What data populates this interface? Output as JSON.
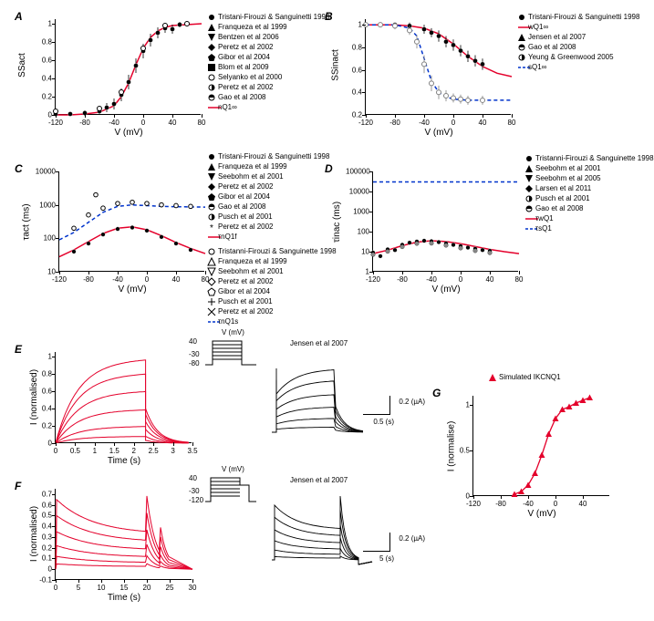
{
  "colors": {
    "red": "#e4002b",
    "blue": "#0033cc",
    "black": "#000000",
    "gray": "#808080",
    "bg": "#ffffff"
  },
  "panelA": {
    "label": "A",
    "type": "scatter+line",
    "xlabel": "V (mV)",
    "ylabel": "SSact",
    "xlim": [
      -120,
      80
    ],
    "ylim": [
      0,
      1.05
    ],
    "xticks": [
      -120,
      -80,
      -40,
      0,
      40,
      80
    ],
    "yticks": [
      0,
      0.2,
      0.4,
      0.6,
      0.8,
      1
    ],
    "legend": [
      {
        "label": "Tristani-Firouzi & Sanguinetti 1998",
        "marker": "circle-filled",
        "color": "#000"
      },
      {
        "label": "Franqueza et al 1999",
        "marker": "triangle-up-filled",
        "color": "#000"
      },
      {
        "label": "Bentzen et al 2006",
        "marker": "triangle-down-filled",
        "color": "#000"
      },
      {
        "label": "Peretz et al 2002",
        "marker": "diamond-filled",
        "color": "#000"
      },
      {
        "label": "Gibor et al 2004",
        "marker": "pentagon-filled",
        "color": "#000"
      },
      {
        "label": "Blom et al 2009",
        "marker": "square-filled",
        "color": "#000"
      },
      {
        "label": "Selyanko et al 2000",
        "marker": "circle-open",
        "color": "#000"
      },
      {
        "label": "Peretz et al 2002",
        "marker": "circle-half",
        "color": "#000"
      },
      {
        "label": "Gao et al 2008",
        "marker": "circle-half-v",
        "color": "#000"
      },
      {
        "label": "nQ1∞",
        "marker": "line",
        "color": "#e4002b"
      }
    ],
    "curve_x": [
      -120,
      -100,
      -80,
      -60,
      -40,
      -30,
      -20,
      -10,
      0,
      10,
      20,
      30,
      40,
      60,
      80
    ],
    "curve_y": [
      0,
      0,
      0.01,
      0.03,
      0.1,
      0.2,
      0.35,
      0.55,
      0.73,
      0.85,
      0.92,
      0.96,
      0.98,
      0.99,
      1.0
    ],
    "points": [
      {
        "x": -120,
        "y": 0.01,
        "err": 0.02
      },
      {
        "x": -100,
        "y": 0.01,
        "err": 0.02
      },
      {
        "x": -80,
        "y": 0.02,
        "err": 0.03
      },
      {
        "x": -60,
        "y": 0.04,
        "err": 0.04
      },
      {
        "x": -50,
        "y": 0.08,
        "err": 0.05
      },
      {
        "x": -40,
        "y": 0.12,
        "err": 0.06
      },
      {
        "x": -30,
        "y": 0.22,
        "err": 0.07
      },
      {
        "x": -20,
        "y": 0.36,
        "err": 0.08
      },
      {
        "x": -10,
        "y": 0.54,
        "err": 0.08
      },
      {
        "x": 0,
        "y": 0.7,
        "err": 0.08
      },
      {
        "x": 10,
        "y": 0.82,
        "err": 0.07
      },
      {
        "x": 20,
        "y": 0.9,
        "err": 0.06
      },
      {
        "x": 30,
        "y": 0.95,
        "err": 0.05
      },
      {
        "x": 40,
        "y": 0.94,
        "err": 0.05
      },
      {
        "x": 50,
        "y": 0.99,
        "err": 0.03
      },
      {
        "x": 60,
        "y": 1.0,
        "err": 0.02
      }
    ]
  },
  "panelB": {
    "label": "B",
    "type": "scatter+line",
    "xlabel": "V (mV)",
    "ylabel": "SSinact",
    "xlim": [
      -120,
      80
    ],
    "ylim": [
      0.2,
      1.05
    ],
    "xticks": [
      -120,
      -80,
      -40,
      0,
      40,
      80
    ],
    "yticks": [
      0.2,
      0.4,
      0.6,
      0.8,
      1
    ],
    "legend": [
      {
        "label": "Tristani-Firouzi & Sanguinetti 1998",
        "marker": "circle-filled",
        "color": "#000"
      },
      {
        "label": "wQ1∞",
        "marker": "line",
        "color": "#e4002b"
      },
      {
        "label": "Jensen et al 2007",
        "marker": "triangle-up-filled",
        "color": "#000"
      },
      {
        "label": "Gao et al 2008",
        "marker": "circle-half-v",
        "color": "#000"
      },
      {
        "label": "Yeung & Greenwood 2005",
        "marker": "circle-half",
        "color": "#000"
      },
      {
        "label": "sQ1∞",
        "marker": "line-dash",
        "color": "#0033cc"
      }
    ],
    "red_curve": {
      "x": [
        -120,
        -100,
        -80,
        -60,
        -40,
        -20,
        0,
        20,
        40,
        60,
        80
      ],
      "y": [
        1,
        1,
        1,
        0.99,
        0.97,
        0.92,
        0.83,
        0.72,
        0.63,
        0.57,
        0.54
      ]
    },
    "blue_curve": {
      "x": [
        -120,
        -100,
        -80,
        -60,
        -50,
        -40,
        -30,
        -20,
        -10,
        0,
        20,
        40,
        60,
        80
      ],
      "y": [
        1,
        1,
        1,
        0.97,
        0.9,
        0.7,
        0.5,
        0.4,
        0.36,
        0.34,
        0.33,
        0.33,
        0.33,
        0.33
      ]
    },
    "black_points": [
      {
        "x": -120,
        "y": 1.0,
        "err": 0.02
      },
      {
        "x": -100,
        "y": 1.0,
        "err": 0.02
      },
      {
        "x": -80,
        "y": 1.0,
        "err": 0.02
      },
      {
        "x": -60,
        "y": 0.99,
        "err": 0.03
      },
      {
        "x": -40,
        "y": 0.96,
        "err": 0.04
      },
      {
        "x": -30,
        "y": 0.93,
        "err": 0.04
      },
      {
        "x": -20,
        "y": 0.9,
        "err": 0.05
      },
      {
        "x": -10,
        "y": 0.85,
        "err": 0.05
      },
      {
        "x": 0,
        "y": 0.82,
        "err": 0.05
      },
      {
        "x": 10,
        "y": 0.77,
        "err": 0.05
      },
      {
        "x": 20,
        "y": 0.72,
        "err": 0.05
      },
      {
        "x": 30,
        "y": 0.68,
        "err": 0.05
      },
      {
        "x": 40,
        "y": 0.65,
        "err": 0.05
      }
    ],
    "blue_points": [
      {
        "x": -120,
        "y": 1.0,
        "err": 0.02
      },
      {
        "x": -100,
        "y": 1.0,
        "err": 0.02
      },
      {
        "x": -80,
        "y": 0.99,
        "err": 0.03
      },
      {
        "x": -60,
        "y": 0.95,
        "err": 0.04
      },
      {
        "x": -50,
        "y": 0.85,
        "err": 0.06
      },
      {
        "x": -40,
        "y": 0.65,
        "err": 0.08
      },
      {
        "x": -30,
        "y": 0.48,
        "err": 0.07
      },
      {
        "x": -20,
        "y": 0.4,
        "err": 0.06
      },
      {
        "x": -10,
        "y": 0.37,
        "err": 0.05
      },
      {
        "x": 0,
        "y": 0.35,
        "err": 0.04
      },
      {
        "x": 10,
        "y": 0.34,
        "err": 0.04
      },
      {
        "x": 20,
        "y": 0.33,
        "err": 0.04
      },
      {
        "x": 40,
        "y": 0.33,
        "err": 0.04
      }
    ]
  },
  "panelC": {
    "label": "C",
    "type": "scatter+line",
    "xlabel": "V (mV)",
    "ylabel": "τact (ms)",
    "xlim": [
      -120,
      80
    ],
    "ylim": [
      10,
      10000
    ],
    "yscale": "log",
    "xticks": [
      -120,
      -80,
      -40,
      0,
      40,
      80
    ],
    "yticks": [
      10,
      100,
      1000,
      10000
    ],
    "legend_top": [
      {
        "label": "Tristani-Firouzi & Sanguinetti 1998",
        "marker": "circle-filled",
        "color": "#000"
      },
      {
        "label": "Franqueza et al 1999",
        "marker": "triangle-up-filled",
        "color": "#000"
      },
      {
        "label": "Seebohm et al 2001",
        "marker": "triangle-down-filled",
        "color": "#000"
      },
      {
        "label": "Peretz et al 2002",
        "marker": "diamond-filled",
        "color": "#000"
      },
      {
        "label": "Gibor et al 2004",
        "marker": "pentagon-filled",
        "color": "#000"
      },
      {
        "label": "Gao et al 2008",
        "marker": "circle-half-v",
        "color": "#000"
      },
      {
        "label": "Pusch et al 2001",
        "marker": "circle-half",
        "color": "#000"
      },
      {
        "label": "Peretz et al 2002",
        "marker": "star",
        "color": "#000"
      },
      {
        "label": "τnQ1f",
        "marker": "line",
        "color": "#e4002b"
      }
    ],
    "legend_bottom": [
      {
        "label": "Tristanni-Firouzi & Sanguinette 1998",
        "marker": "circle-open",
        "color": "#000"
      },
      {
        "label": "Franqueza et al 1999",
        "marker": "triangle-up-open",
        "color": "#000"
      },
      {
        "label": "Seebohm et al 2001",
        "marker": "triangle-down-open",
        "color": "#000"
      },
      {
        "label": "Peretz et al 2002",
        "marker": "diamond-open",
        "color": "#000"
      },
      {
        "label": "Gibor et al 2004",
        "marker": "pentagon-open",
        "color": "#000"
      },
      {
        "label": "Pusch et al 2001",
        "marker": "plus",
        "color": "#000"
      },
      {
        "label": "Peretz et al 2002",
        "marker": "x",
        "color": "#000"
      },
      {
        "label": "τnQ1s",
        "marker": "line-dash",
        "color": "#0033cc"
      }
    ],
    "red_curve": {
      "x": [
        -120,
        -100,
        -80,
        -60,
        -40,
        -20,
        0,
        20,
        40,
        60,
        80
      ],
      "y": [
        28,
        45,
        80,
        140,
        200,
        220,
        180,
        120,
        75,
        50,
        35
      ]
    },
    "blue_curve": {
      "x": [
        -120,
        -100,
        -80,
        -60,
        -40,
        -20,
        0,
        20,
        40,
        60,
        80
      ],
      "y": [
        90,
        150,
        300,
        600,
        900,
        1000,
        950,
        900,
        880,
        870,
        860
      ]
    },
    "points_fast": [
      {
        "x": -100,
        "y": 40
      },
      {
        "x": -80,
        "y": 70
      },
      {
        "x": -60,
        "y": 130
      },
      {
        "x": -40,
        "y": 190
      },
      {
        "x": -20,
        "y": 210
      },
      {
        "x": 0,
        "y": 170
      },
      {
        "x": 20,
        "y": 110
      },
      {
        "x": 40,
        "y": 70
      },
      {
        "x": 60,
        "y": 45
      }
    ],
    "points_slow": [
      {
        "x": -100,
        "y": 200
      },
      {
        "x": -80,
        "y": 500
      },
      {
        "x": -70,
        "y": 2000
      },
      {
        "x": -60,
        "y": 800
      },
      {
        "x": -40,
        "y": 1100
      },
      {
        "x": -20,
        "y": 1200
      },
      {
        "x": 0,
        "y": 1100
      },
      {
        "x": 20,
        "y": 1000
      },
      {
        "x": 40,
        "y": 950
      },
      {
        "x": 60,
        "y": 900
      }
    ]
  },
  "panelD": {
    "label": "D",
    "type": "scatter+line",
    "xlabel": "V (mV)",
    "ylabel": "τinac (ms)",
    "xlim": [
      -120,
      80
    ],
    "ylim": [
      1,
      100000
    ],
    "yscale": "log",
    "xticks": [
      -120,
      -80,
      -40,
      0,
      40,
      80
    ],
    "yticks": [
      1,
      10,
      100,
      1000,
      10000,
      100000
    ],
    "legend": [
      {
        "label": "Tristanni-Firouzi & Sanguinette 1998",
        "marker": "circle-filled",
        "color": "#000"
      },
      {
        "label": "Seebohm et al 2001",
        "marker": "triangle-up-filled",
        "color": "#000"
      },
      {
        "label": "Seebohm et al 2005",
        "marker": "triangle-down-filled",
        "color": "#000"
      },
      {
        "label": "Larsen et al 2011",
        "marker": "diamond-filled",
        "color": "#000"
      },
      {
        "label": "Pusch et al 2001",
        "marker": "circle-half",
        "color": "#000"
      },
      {
        "label": "Gao et al 2008",
        "marker": "circle-half-v",
        "color": "#000"
      },
      {
        "label": "τwQ1",
        "marker": "line",
        "color": "#e4002b"
      },
      {
        "label": "τsQ1",
        "marker": "line-dash",
        "color": "#0033cc"
      }
    ],
    "red_curve": {
      "x": [
        -120,
        -100,
        -80,
        -60,
        -40,
        -20,
        0,
        20,
        40,
        60,
        80
      ],
      "y": [
        8,
        12,
        20,
        30,
        35,
        32,
        25,
        18,
        13,
        10,
        8
      ]
    },
    "blue_line_y": 30000,
    "points": [
      {
        "x": -120,
        "y": 9
      },
      {
        "x": -110,
        "y": 6
      },
      {
        "x": -100,
        "y": 13
      },
      {
        "x": -90,
        "y": 12
      },
      {
        "x": -80,
        "y": 22
      },
      {
        "x": -70,
        "y": 28
      },
      {
        "x": -60,
        "y": 32
      },
      {
        "x": -50,
        "y": 35
      },
      {
        "x": -40,
        "y": 33
      },
      {
        "x": -30,
        "y": 30
      },
      {
        "x": -20,
        "y": 26
      },
      {
        "x": -10,
        "y": 22
      },
      {
        "x": 0,
        "y": 19
      },
      {
        "x": 10,
        "y": 16
      },
      {
        "x": 20,
        "y": 14
      },
      {
        "x": 30,
        "y": 12
      },
      {
        "x": 40,
        "y": 11
      }
    ]
  },
  "panelE": {
    "label": "E",
    "xlabel": "Time (s)",
    "ylabel": "I (normalised)",
    "left": {
      "xlim": [
        0,
        3.5
      ],
      "ylim": [
        0,
        1.05
      ],
      "xticks": [
        0,
        0.5,
        1.0,
        1.5,
        2.0,
        2.5,
        3.0,
        3.5
      ],
      "yticks": [
        0,
        0.2,
        0.4,
        0.6,
        0.8,
        1
      ],
      "color": "#e4002b",
      "inset_label": "V (mV)",
      "inset_levels": [
        "40",
        "-30",
        "-80"
      ]
    },
    "right": {
      "ref": "Jensen et al 2007",
      "scale_y": "0.2 (µA)",
      "scale_x": "0.5 (s)"
    }
  },
  "panelF": {
    "label": "F",
    "xlabel": "Time (s)",
    "ylabel": "I (normalised)",
    "left": {
      "xlim": [
        0,
        30
      ],
      "ylim": [
        -0.1,
        0.75
      ],
      "xticks": [
        0,
        5,
        10,
        15,
        20,
        25,
        30
      ],
      "yticks": [
        -0.1,
        0,
        0.1,
        0.2,
        0.3,
        0.4,
        0.5,
        0.6,
        0.7
      ],
      "color": "#e4002b",
      "inset_label": "V (mV)",
      "inset_levels": [
        "40",
        "-30",
        "-120"
      ]
    },
    "right": {
      "ref": "Jensen et al 2007",
      "scale_y": "0.2 (µA)",
      "scale_x": "5 (s)"
    }
  },
  "panelG": {
    "label": "G",
    "type": "scatter+line",
    "xlabel": "V (mV)",
    "ylabel": "I (normalise)",
    "xlim": [
      -120,
      80
    ],
    "ylim": [
      0,
      1.1
    ],
    "xticks": [
      -120,
      -80,
      -40,
      0,
      40
    ],
    "yticks": [
      0,
      0.5,
      1
    ],
    "legend": [
      {
        "label": "Simulated IKCNQ1",
        "marker": "triangle-up-filled",
        "color": "#e4002b"
      }
    ],
    "points": [
      {
        "x": -60,
        "y": 0.02
      },
      {
        "x": -50,
        "y": 0.05
      },
      {
        "x": -40,
        "y": 0.12
      },
      {
        "x": -30,
        "y": 0.25
      },
      {
        "x": -20,
        "y": 0.45
      },
      {
        "x": -10,
        "y": 0.68
      },
      {
        "x": 0,
        "y": 0.85
      },
      {
        "x": 10,
        "y": 0.95
      },
      {
        "x": 20,
        "y": 0.98
      },
      {
        "x": 30,
        "y": 1.02
      },
      {
        "x": 40,
        "y": 1.05
      },
      {
        "x": 50,
        "y": 1.08
      }
    ]
  }
}
